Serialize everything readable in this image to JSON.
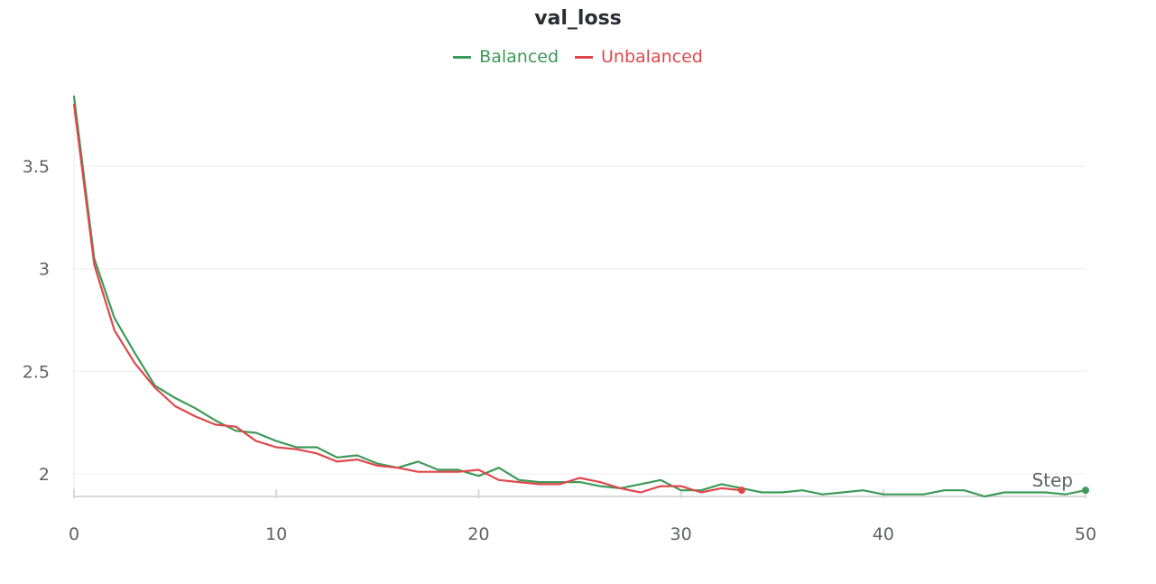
{
  "chart_data": {
    "type": "line",
    "title": "val_loss",
    "xlabel": "Step",
    "ylabel": "",
    "xlim": [
      0,
      50
    ],
    "ylim": [
      1.89,
      3.87
    ],
    "x_ticks": [
      "0",
      "10",
      "20",
      "30",
      "40",
      "50"
    ],
    "y_ticks": [
      "2",
      "2.5",
      "3",
      "3.5"
    ],
    "grid": true,
    "legend_position": "top-center",
    "series": [
      {
        "name": "Balanced",
        "color": "#3d9a57",
        "x": [
          0,
          1,
          2,
          3,
          4,
          5,
          6,
          7,
          8,
          9,
          10,
          11,
          12,
          13,
          14,
          15,
          16,
          17,
          18,
          19,
          20,
          21,
          22,
          23,
          24,
          25,
          26,
          27,
          28,
          29,
          30,
          31,
          32,
          33,
          34,
          35,
          36,
          37,
          38,
          39,
          40,
          41,
          42,
          43,
          44,
          45,
          46,
          47,
          48,
          49,
          50
        ],
        "y": [
          3.84,
          3.05,
          2.76,
          2.59,
          2.43,
          2.37,
          2.32,
          2.26,
          2.21,
          2.2,
          2.16,
          2.13,
          2.13,
          2.08,
          2.09,
          2.05,
          2.03,
          2.06,
          2.02,
          2.02,
          1.99,
          2.03,
          1.97,
          1.96,
          1.96,
          1.96,
          1.94,
          1.93,
          1.95,
          1.97,
          1.92,
          1.92,
          1.95,
          1.93,
          1.91,
          1.91,
          1.92,
          1.9,
          1.91,
          1.92,
          1.9,
          1.9,
          1.9,
          1.92,
          1.92,
          1.89,
          1.91,
          1.91,
          1.91,
          1.9,
          1.92
        ]
      },
      {
        "name": "Unbalanced",
        "color": "#e0474c",
        "x": [
          0,
          1,
          2,
          3,
          4,
          5,
          6,
          7,
          8,
          9,
          10,
          11,
          12,
          13,
          14,
          15,
          16,
          17,
          18,
          19,
          20,
          21,
          22,
          23,
          24,
          25,
          26,
          27,
          28,
          29,
          30,
          31,
          32,
          33
        ],
        "y": [
          3.8,
          3.02,
          2.7,
          2.54,
          2.42,
          2.33,
          2.28,
          2.24,
          2.23,
          2.16,
          2.13,
          2.12,
          2.1,
          2.06,
          2.07,
          2.04,
          2.03,
          2.01,
          2.01,
          2.01,
          2.02,
          1.97,
          1.96,
          1.95,
          1.95,
          1.98,
          1.96,
          1.93,
          1.91,
          1.94,
          1.94,
          1.91,
          1.93,
          1.92
        ]
      }
    ]
  }
}
